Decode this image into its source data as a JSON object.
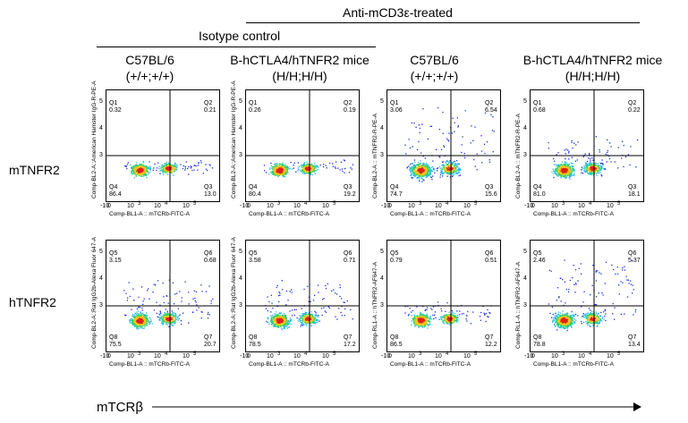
{
  "header": {
    "treatment_label": "Anti-mCD3ε-treated",
    "isotype_label": "Isotype control"
  },
  "columns": [
    {
      "line1": "C57BL/6",
      "line2": "(+/+;+/+)"
    },
    {
      "line1": "B-hCTLA4/hTNFR2 mice",
      "line2": "(H/H;H/H)"
    },
    {
      "line1": "C57BL/6",
      "line2": "(+/+;+/+)"
    },
    {
      "line1": "B-hCTLA4/hTNFR2 mice",
      "line2": "(H/H;H/H)"
    }
  ],
  "rows": [
    {
      "label": "mTNFR2"
    },
    {
      "label": "hTNFR2"
    }
  ],
  "x_axis_title": "mTCRβ",
  "x_tick_labels": [
    "-10",
    "0",
    "10",
    "3",
    "10",
    "4",
    "10",
    "5"
  ],
  "y_tick_labels": [
    "3",
    "4",
    "5"
  ],
  "panels": [
    {
      "ylabel": "Comp-BL2-A::American Hamster IgG-R-PE-A",
      "xlabel": "Comp-BL1-A :: mTCRb-FITC-A",
      "q": [
        {
          "name": "Q1",
          "value": "0.32"
        },
        {
          "name": "Q2",
          "value": "0.21"
        },
        {
          "name": "Q4",
          "value": "86.4"
        },
        {
          "name": "Q3",
          "value": "13.0"
        }
      ],
      "pop": {
        "main_spread": 1.0,
        "tail": 0.1
      }
    },
    {
      "ylabel": "Comp-BL2-A::American Hamster IgG-R-PE-A",
      "xlabel": "Comp-BL1-A :: mTCRb-FITC-A",
      "q": [
        {
          "name": "Q1",
          "value": "0.26"
        },
        {
          "name": "Q2",
          "value": "0.19"
        },
        {
          "name": "Q4",
          "value": "80.4"
        },
        {
          "name": "Q3",
          "value": "19.2"
        }
      ],
      "pop": {
        "main_spread": 1.0,
        "tail": 0.1
      }
    },
    {
      "ylabel": "Comp-BL2-A :: mTNFR2-R-PE-A",
      "xlabel": "Comp-BL1-A :: mTCRb-FITC-A",
      "q": [
        {
          "name": "Q1",
          "value": "3.06"
        },
        {
          "name": "Q2",
          "value": "6.54"
        },
        {
          "name": "Q4",
          "value": "74.7"
        },
        {
          "name": "Q3",
          "value": "15.6"
        }
      ],
      "pop": {
        "main_spread": 1.4,
        "tail": 0.8
      }
    },
    {
      "ylabel": "Comp-BL2-A :: mTNFR2-R-PE-A",
      "xlabel": "Comp-BL1-A :: mTCRb-FITC-A",
      "q": [
        {
          "name": "Q1",
          "value": "0.68"
        },
        {
          "name": "Q2",
          "value": "0.22"
        },
        {
          "name": "Q4",
          "value": "81.0"
        },
        {
          "name": "Q3",
          "value": "18.1"
        }
      ],
      "pop": {
        "main_spread": 1.2,
        "tail": 0.4
      }
    },
    {
      "ylabel": "Comp-BL2-A::Rat IgG2b-Alexa Fluor 647-A",
      "xlabel": "Comp-BL1-A :: mTCRb-FITC-A",
      "q": [
        {
          "name": "Q5",
          "value": "3.15"
        },
        {
          "name": "Q6",
          "value": "0.68"
        },
        {
          "name": "Q8",
          "value": "75.5"
        },
        {
          "name": "Q7",
          "value": "20.7"
        }
      ],
      "pop": {
        "main_spread": 1.2,
        "tail": 0.5
      }
    },
    {
      "ylabel": "Comp-BL2-A::Rat IgG2b-Alexa Fluor 647-A",
      "xlabel": "Comp-BL1-A :: mTCRb-FITC-A",
      "q": [
        {
          "name": "Q5",
          "value": "3.58"
        },
        {
          "name": "Q6",
          "value": "0.71"
        },
        {
          "name": "Q8",
          "value": "78.5"
        },
        {
          "name": "Q7",
          "value": "17.2"
        }
      ],
      "pop": {
        "main_spread": 1.2,
        "tail": 0.5
      }
    },
    {
      "ylabel": "Comp-RL1-A :: hTNFR2-AF647-A",
      "xlabel": "Comp-BL1-A :: mTCRb-FITC-A",
      "q": [
        {
          "name": "Q5",
          "value": "0.79"
        },
        {
          "name": "Q6",
          "value": "0.51"
        },
        {
          "name": "Q8",
          "value": "86.5"
        },
        {
          "name": "Q7",
          "value": "12.2"
        }
      ],
      "pop": {
        "main_spread": 1.0,
        "tail": 0.2
      }
    },
    {
      "ylabel": "Comp-RL1-A :: hTNFR2-AF647-A",
      "xlabel": "Comp-BL1-A :: mTCRb-FITC-A",
      "q": [
        {
          "name": "Q5",
          "value": "2.46"
        },
        {
          "name": "Q6",
          "value": "5.37"
        },
        {
          "name": "Q8",
          "value": "78.8"
        },
        {
          "name": "Q7",
          "value": "13.4"
        }
      ],
      "pop": {
        "main_spread": 1.3,
        "tail": 0.8
      }
    }
  ]
}
